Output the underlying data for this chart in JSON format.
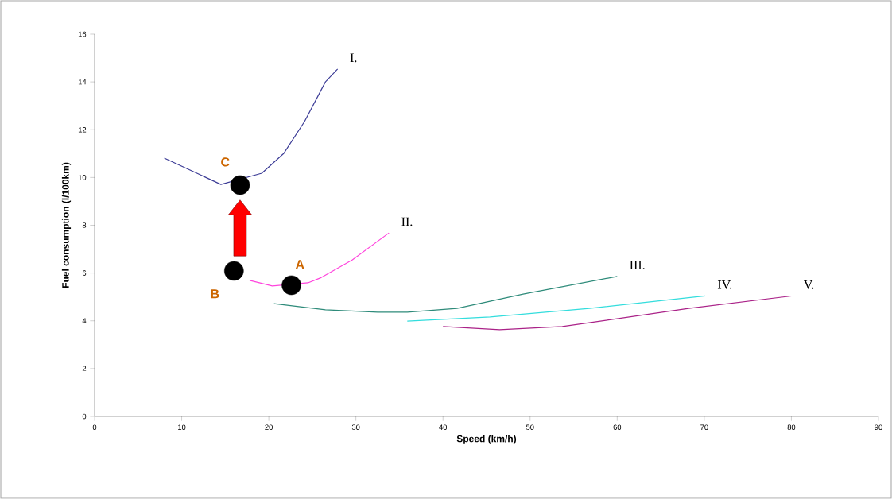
{
  "chart_data": {
    "type": "line",
    "xlabel": "Speed (km/h)",
    "ylabel": "Fuel consumption  (l/100km)",
    "xlim": [
      0,
      90
    ],
    "xticks": [
      0,
      10,
      20,
      30,
      40,
      50,
      60,
      70,
      80,
      90
    ],
    "ylim": [
      0,
      16
    ],
    "yticks": [
      0,
      2,
      4,
      6,
      8,
      10,
      12,
      14,
      16
    ],
    "grid": false,
    "marker": "none",
    "line_style": "solid",
    "series": [
      {
        "name": "I.",
        "color": "#3c3c96",
        "x": [
          8.0,
          14.5,
          16.7,
          19.2,
          21.7,
          24.1,
          26.5,
          27.9
        ],
        "values": [
          10.81,
          9.71,
          null,
          10.18,
          11.0,
          12.34,
          14.0,
          14.54
        ]
      },
      {
        "name": "II.",
        "color": "#ff44dd",
        "x": [
          17.8,
          20.4,
          22.6,
          24.5,
          25.9,
          29.6,
          33.8
        ],
        "values": [
          5.69,
          5.46,
          null,
          5.59,
          5.79,
          6.55,
          7.68
        ]
      },
      {
        "name": "III.",
        "color": "#2e8b7a",
        "x": [
          20.6,
          26.5,
          32.5,
          35.9,
          41.6,
          49.2,
          60.0
        ],
        "values": [
          4.72,
          4.46,
          4.36,
          4.36,
          4.52,
          5.12,
          5.86
        ]
      },
      {
        "name": "IV.",
        "color": "#33dddd",
        "x": [
          35.9,
          45.4,
          56.8,
          70.1
        ],
        "values": [
          3.99,
          4.16,
          4.52,
          5.04
        ]
      },
      {
        "name": "V.",
        "color": "#aa2288",
        "x": [
          40.0,
          46.5,
          53.7,
          68.2,
          80.0
        ],
        "values": [
          3.76,
          3.63,
          3.76,
          4.52,
          5.04
        ]
      },
      {
        "type": "scatter",
        "marker": "circle",
        "color": "#000000",
        "x": [
          22.6,
          16.0,
          16.7
        ],
        "values": [
          5.49,
          6.09,
          9.68
        ]
      }
    ],
    "annotations": [
      {
        "text": "A",
        "x": 22.6,
        "y": 5.49
      },
      {
        "text": "B",
        "x": 16.0,
        "y": 6.09
      },
      {
        "text": "C",
        "x": 16.7,
        "y": 9.68
      }
    ]
  }
}
